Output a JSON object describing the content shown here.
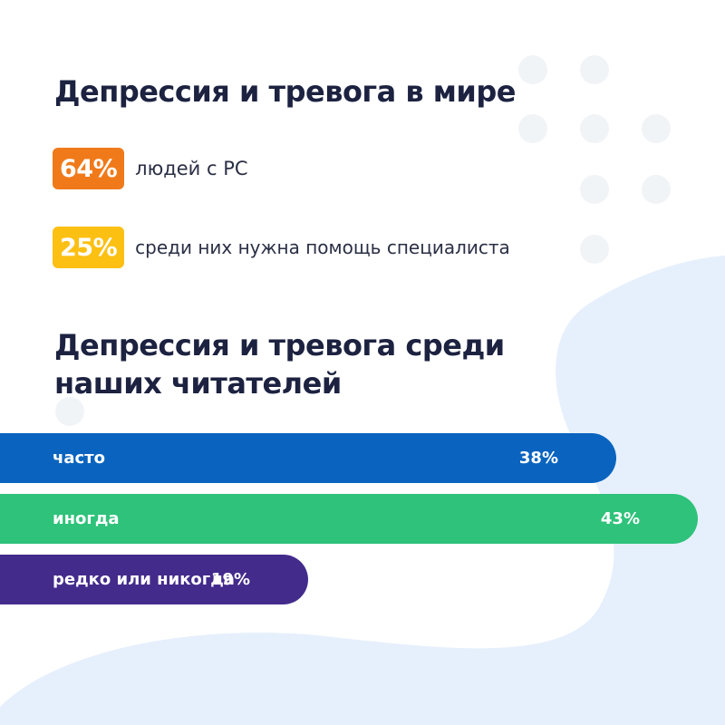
{
  "section1": {
    "title": "Депрессия и тревога в мире",
    "stats": [
      {
        "value": "64%",
        "text": "людей с РС",
        "color": "#f07a1a"
      },
      {
        "value": "25%",
        "text": "среди них нужна помощь специалиста",
        "color": "#fcc013"
      }
    ]
  },
  "section2": {
    "title": "Депрессия и тревога среди наших читателей"
  },
  "chart_data": {
    "type": "bar",
    "orientation": "horizontal",
    "categories": [
      "часто",
      "иногда",
      "редко или никогда"
    ],
    "values": [
      38,
      43,
      19
    ],
    "value_labels": [
      "38%",
      "43%",
      "19%"
    ],
    "colors": [
      "#0a64bf",
      "#2ec27a",
      "#432b8c"
    ],
    "title": "Депрессия и тревога среди наших читателей",
    "xlabel": "",
    "ylabel": "",
    "grid": false
  },
  "colors": {
    "title": "#1c2240",
    "blob": "#e6f0fc",
    "dots": "#f1f4f7"
  }
}
